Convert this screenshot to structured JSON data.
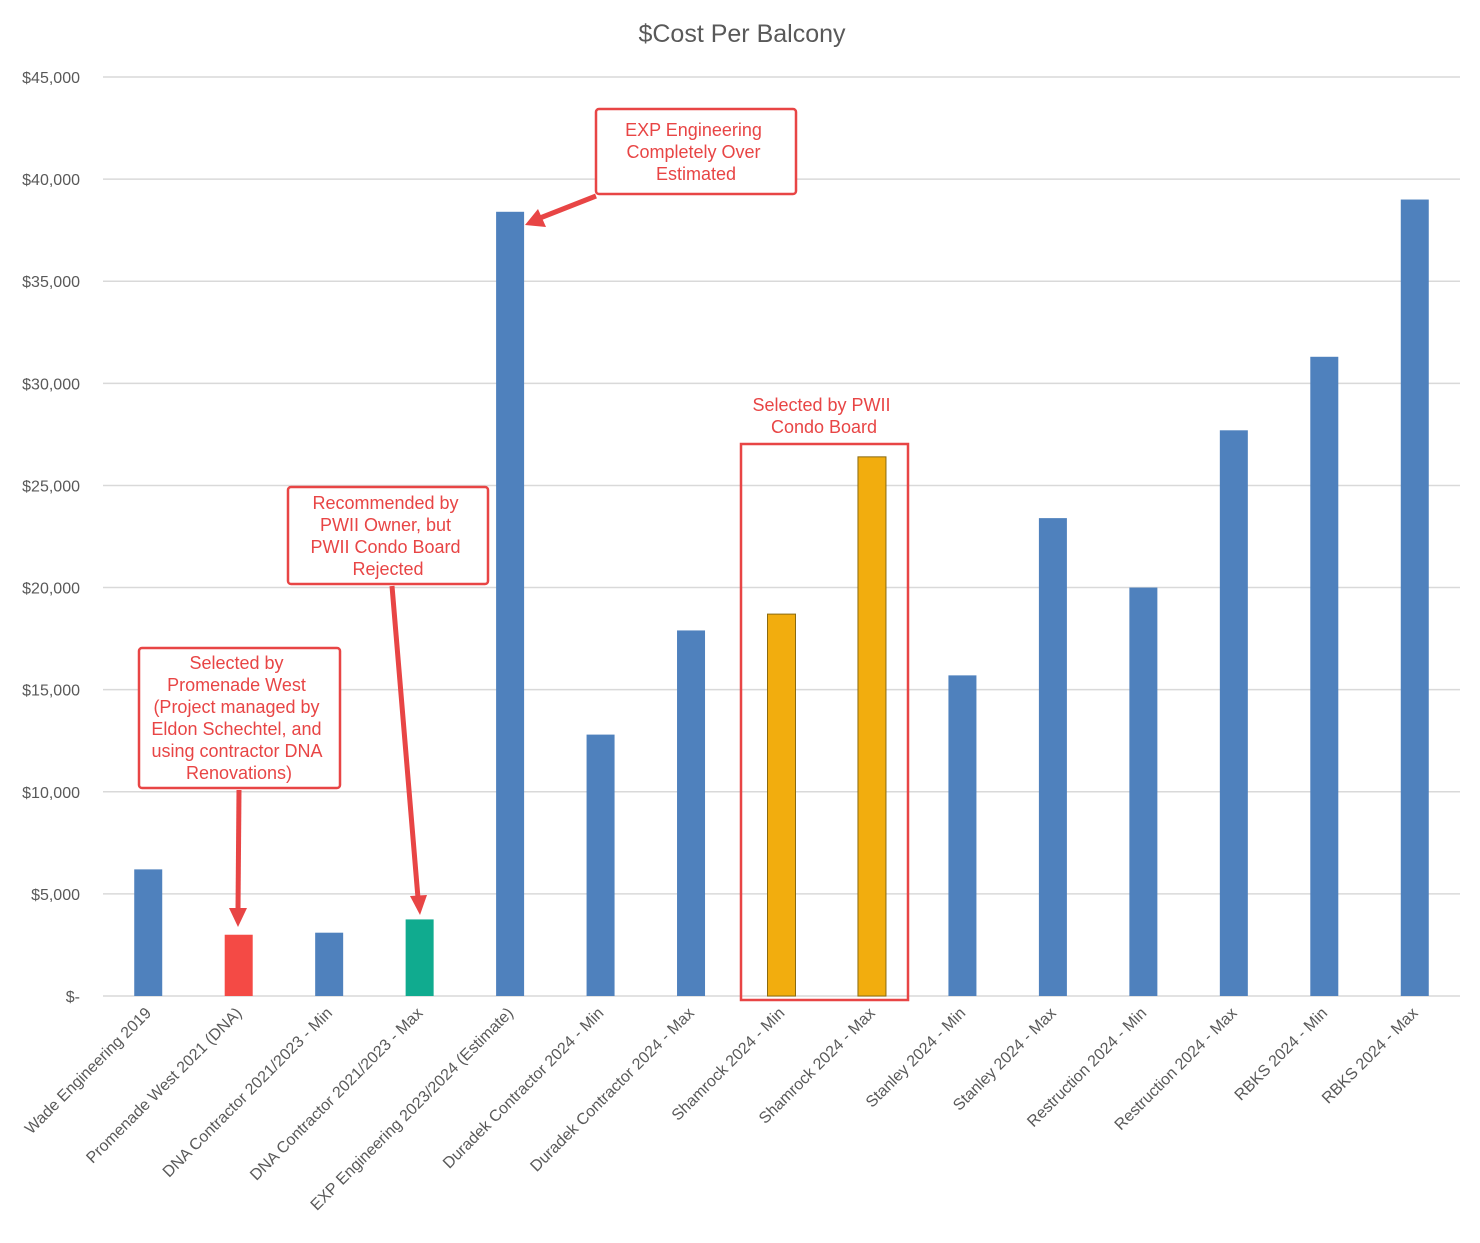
{
  "chart_data": {
    "type": "bar",
    "title": "$Cost Per Balcony",
    "xlabel": "",
    "ylabel": "",
    "ylim": [
      0,
      45000
    ],
    "yticks": [
      0,
      5000,
      10000,
      15000,
      20000,
      25000,
      30000,
      35000,
      40000,
      45000
    ],
    "ytick_labels": [
      "$-",
      "$5,000",
      "$10,000",
      "$15,000",
      "$20,000",
      "$25,000",
      "$30,000",
      "$35,000",
      "$40,000",
      "$45,000"
    ],
    "grid": true,
    "legend": "none",
    "categories": [
      "Wade Engineering 2019",
      "Promenade West 2021 (DNA)",
      "DNA Contractor 2021/2023 - Min",
      "DNA Contractor 2021/2023 - Max",
      "EXP Engineering 2023/2024 (Estimate)",
      "Duradek Contractor 2024 - Min",
      "Duradek Contractor 2024 - Max",
      "Shamrock 2024 - Min",
      "Shamrock 2024 - Max",
      "Stanley 2024 - Min",
      "Stanley 2024 - Max",
      "Restruction 2024 - Min",
      "Restruction 2024 - Max",
      "RBKS 2024 - Min",
      "RBKS 2024 - Max"
    ],
    "values": [
      6200,
      3000,
      3100,
      3750,
      38400,
      12800,
      17900,
      18700,
      26400,
      15700,
      23400,
      20000,
      27700,
      31300,
      39000
    ],
    "bar_colors": [
      "#4f81bd",
      "#f44a45",
      "#4f81bd",
      "#10ab8f",
      "#4f81bd",
      "#4f81bd",
      "#4f81bd",
      "#f2ad0e",
      "#f2ad0e",
      "#4f81bd",
      "#4f81bd",
      "#4f81bd",
      "#4f81bd",
      "#4f81bd",
      "#4f81bd"
    ],
    "annotations": [
      {
        "id": "exp",
        "lines": [
          "EXP Engineering",
          "Completely Over",
          "Estimated"
        ],
        "target_index": 4
      },
      {
        "id": "pwii",
        "lines": [
          "Selected by PWII",
          "Condo Board"
        ],
        "target_indices": [
          7,
          8
        ]
      },
      {
        "id": "recommended",
        "lines": [
          "Recommended by",
          "PWII Owner, but",
          "PWII Condo Board",
          "Rejected"
        ],
        "target_index": 3
      },
      {
        "id": "promenade",
        "lines": [
          "Selected by",
          "Promenade West",
          "(Project managed by",
          "Eldon Schechtel, and",
          "using contractor DNA",
          "Renovations)"
        ],
        "target_index": 1
      }
    ],
    "annotation_color": "#e84545"
  }
}
